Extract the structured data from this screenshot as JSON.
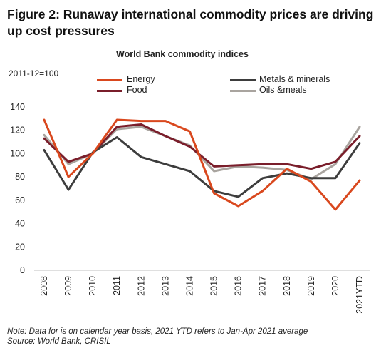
{
  "figure": {
    "title": "Figure 2: Runaway international commodity prices are driving up cost pressures"
  },
  "chart_data": {
    "type": "line",
    "title": "World Bank commodity indices",
    "unit_label": "2011-12=100",
    "x": [
      "2008",
      "2009",
      "2010",
      "2011",
      "2012",
      "2013",
      "2014",
      "2015",
      "2016",
      "2017",
      "2018",
      "2019",
      "2020",
      "2021YTD"
    ],
    "ylim": [
      0,
      140
    ],
    "yticks": [
      0,
      20,
      40,
      60,
      80,
      100,
      120,
      140
    ],
    "grid": false,
    "legend_position": "top",
    "series": [
      {
        "name": "Energy",
        "color": "#d9481e",
        "values": [
          129,
          80,
          100,
          129,
          128,
          128,
          119,
          66,
          55,
          68,
          87,
          76,
          52,
          77
        ]
      },
      {
        "name": "Metals & minerals",
        "color": "#3d3d3d",
        "values": [
          103,
          69,
          101,
          114,
          97,
          91,
          85,
          68,
          63,
          79,
          83,
          79,
          79,
          109
        ]
      },
      {
        "name": "Food",
        "color": "#7a1e2b",
        "values": [
          113,
          93,
          100,
          123,
          125,
          115,
          106,
          89,
          90,
          91,
          91,
          87,
          93,
          115
        ]
      },
      {
        "name": "Oils &meals",
        "color": "#a9a49f",
        "values": [
          116,
          91,
          100,
          121,
          123,
          115,
          107,
          85,
          89,
          88,
          86,
          78,
          91,
          123
        ]
      }
    ]
  },
  "notes": {
    "line1": "Note: Data for is on calendar year basis, 2021 YTD refers to Jan-Apr 2021 average",
    "line2": "Source: World Bank, CRISIL"
  }
}
